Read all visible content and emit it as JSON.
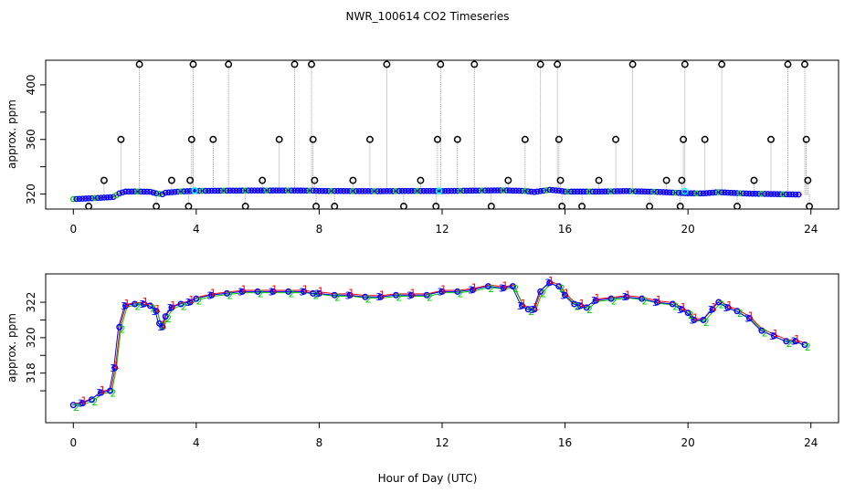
{
  "figure_title": "NWR_100614  CO2 Timeseries",
  "shared_xlabel": "Hour of Day (UTC)",
  "colors": {
    "frame": "#000000",
    "blue": "#0000ff",
    "red": "#ff0000",
    "green": "#00cc00",
    "cyan": "#00ffff",
    "gray": "#888888",
    "flag_circle": "#000000"
  },
  "chart_data": [
    {
      "type": "scatter",
      "title": "",
      "xlabel": "",
      "ylabel": "approx. ppm",
      "xlim": [
        -0.9,
        24.9
      ],
      "ylim": [
        309,
        418
      ],
      "xticks": [
        0,
        4,
        8,
        12,
        16,
        20,
        24
      ],
      "yticks": [
        320,
        360,
        400
      ],
      "yminor": [
        340,
        380
      ],
      "baseline_points": [
        [
          0,
          316.3
        ],
        [
          0.5,
          316.8
        ],
        [
          1.0,
          317.4
        ],
        [
          1.3,
          317.8
        ],
        [
          1.5,
          320.5
        ],
        [
          1.7,
          321.8
        ],
        [
          2.0,
          321.9
        ],
        [
          2.5,
          321.7
        ],
        [
          2.7,
          320.5
        ],
        [
          2.9,
          319.8
        ],
        [
          3.0,
          321.0
        ],
        [
          3.5,
          321.9
        ],
        [
          4.0,
          322.3
        ],
        [
          5.0,
          322.5
        ],
        [
          6.0,
          322.6
        ],
        [
          7.0,
          322.6
        ],
        [
          7.8,
          322.5
        ],
        [
          8.0,
          322.3
        ],
        [
          9.0,
          322.2
        ],
        [
          10.0,
          322.1
        ],
        [
          11.0,
          322.3
        ],
        [
          12.0,
          322.2
        ],
        [
          13.0,
          322.5
        ],
        [
          14.0,
          322.7
        ],
        [
          14.7,
          322.3
        ],
        [
          15.0,
          321.5
        ],
        [
          15.5,
          323.1
        ],
        [
          15.8,
          322.5
        ],
        [
          16.0,
          321.8
        ],
        [
          17.0,
          321.8
        ],
        [
          18.0,
          322.2
        ],
        [
          19.0,
          321.6
        ],
        [
          19.8,
          320.8
        ],
        [
          20.0,
          320.6
        ],
        [
          20.5,
          320.5
        ],
        [
          21.0,
          321.4
        ],
        [
          21.5,
          320.8
        ],
        [
          22.0,
          320.3
        ],
        [
          23.0,
          319.9
        ],
        [
          23.7,
          319.6
        ]
      ],
      "flagged_points": [
        [
          0.5,
          311
        ],
        [
          1.0,
          330
        ],
        [
          1.55,
          360
        ],
        [
          2.15,
          415
        ],
        [
          2.7,
          311
        ],
        [
          3.2,
          330
        ],
        [
          3.75,
          311
        ],
        [
          3.8,
          330
        ],
        [
          3.85,
          360
        ],
        [
          3.9,
          415
        ],
        [
          4.55,
          360
        ],
        [
          5.05,
          415
        ],
        [
          5.6,
          311
        ],
        [
          6.15,
          330
        ],
        [
          6.7,
          360
        ],
        [
          7.2,
          415
        ],
        [
          7.75,
          415
        ],
        [
          7.8,
          360
        ],
        [
          7.85,
          330
        ],
        [
          7.9,
          311
        ],
        [
          8.5,
          311
        ],
        [
          9.1,
          330
        ],
        [
          9.65,
          360
        ],
        [
          10.2,
          415
        ],
        [
          10.75,
          311
        ],
        [
          11.3,
          330
        ],
        [
          11.85,
          360
        ],
        [
          11.95,
          415
        ],
        [
          11.8,
          311
        ],
        [
          12.5,
          360
        ],
        [
          13.05,
          415
        ],
        [
          13.6,
          311
        ],
        [
          14.15,
          330
        ],
        [
          14.7,
          360
        ],
        [
          15.2,
          415
        ],
        [
          15.75,
          415
        ],
        [
          15.8,
          360
        ],
        [
          15.85,
          330
        ],
        [
          15.9,
          311
        ],
        [
          16.55,
          311
        ],
        [
          17.1,
          330
        ],
        [
          17.65,
          360
        ],
        [
          18.2,
          415
        ],
        [
          18.75,
          311
        ],
        [
          19.3,
          330
        ],
        [
          19.75,
          311
        ],
        [
          19.8,
          330
        ],
        [
          19.85,
          360
        ],
        [
          19.9,
          415
        ],
        [
          20.55,
          360
        ],
        [
          21.1,
          415
        ],
        [
          21.6,
          311
        ],
        [
          22.15,
          330
        ],
        [
          22.7,
          360
        ],
        [
          23.25,
          415
        ],
        [
          23.8,
          415
        ],
        [
          23.85,
          360
        ],
        [
          23.9,
          330
        ],
        [
          23.95,
          311
        ]
      ],
      "cyan_points": [
        [
          3.95,
          322.5
        ],
        [
          11.9,
          322.3
        ],
        [
          19.9,
          322.0
        ]
      ]
    },
    {
      "type": "scatter",
      "title": "",
      "xlabel": "Hour of Day (UTC)",
      "ylabel": "approx. ppm",
      "xlim": [
        -0.9,
        24.9
      ],
      "ylim": [
        315.2,
        323.6
      ],
      "xticks": [
        0,
        4,
        8,
        12,
        16,
        20,
        24
      ],
      "yticks": [
        318,
        320,
        322
      ],
      "yminor": [
        317,
        319,
        321
      ],
      "series": [
        {
          "name": "1",
          "color": "#ff0000",
          "dx": 0.05,
          "dy": 0.15
        },
        {
          "name": "2",
          "color": "#00cc00",
          "dx": 0.1,
          "dy": -0.12
        },
        {
          "name": "3",
          "color": "#0000ff",
          "dx": -0.06,
          "dy": 0.0
        }
      ],
      "points": [
        [
          0,
          316.2
        ],
        [
          0.3,
          316.3
        ],
        [
          0.6,
          316.5
        ],
        [
          0.9,
          316.9
        ],
        [
          1.2,
          317.0
        ],
        [
          1.35,
          318.3
        ],
        [
          1.5,
          320.6
        ],
        [
          1.7,
          321.8
        ],
        [
          2.0,
          321.9
        ],
        [
          2.3,
          321.9
        ],
        [
          2.5,
          321.8
        ],
        [
          2.7,
          321.5
        ],
        [
          2.8,
          320.8
        ],
        [
          2.9,
          320.6
        ],
        [
          3.0,
          321.2
        ],
        [
          3.2,
          321.7
        ],
        [
          3.5,
          321.9
        ],
        [
          3.8,
          322.0
        ],
        [
          4.0,
          322.2
        ],
        [
          4.5,
          322.4
        ],
        [
          5.0,
          322.5
        ],
        [
          5.5,
          322.6
        ],
        [
          6.0,
          322.6
        ],
        [
          6.5,
          322.6
        ],
        [
          7.0,
          322.6
        ],
        [
          7.5,
          322.6
        ],
        [
          7.8,
          322.5
        ],
        [
          8.0,
          322.5
        ],
        [
          8.5,
          322.4
        ],
        [
          9.0,
          322.4
        ],
        [
          9.5,
          322.3
        ],
        [
          10.0,
          322.3
        ],
        [
          10.5,
          322.4
        ],
        [
          11.0,
          322.4
        ],
        [
          11.5,
          322.4
        ],
        [
          12.0,
          322.6
        ],
        [
          12.5,
          322.6
        ],
        [
          13.0,
          322.7
        ],
        [
          13.5,
          322.9
        ],
        [
          14.0,
          322.8
        ],
        [
          14.3,
          322.9
        ],
        [
          14.6,
          321.8
        ],
        [
          14.8,
          321.6
        ],
        [
          15.0,
          321.6
        ],
        [
          15.2,
          322.6
        ],
        [
          15.5,
          323.1
        ],
        [
          15.8,
          322.9
        ],
        [
          16.0,
          322.4
        ],
        [
          16.3,
          321.9
        ],
        [
          16.5,
          321.8
        ],
        [
          16.7,
          321.7
        ],
        [
          17.0,
          322.1
        ],
        [
          17.5,
          322.2
        ],
        [
          18.0,
          322.3
        ],
        [
          18.5,
          322.2
        ],
        [
          19.0,
          322.0
        ],
        [
          19.5,
          321.9
        ],
        [
          19.8,
          321.6
        ],
        [
          20.0,
          321.4
        ],
        [
          20.2,
          321.0
        ],
        [
          20.5,
          321.0
        ],
        [
          20.8,
          321.6
        ],
        [
          21.0,
          322.0
        ],
        [
          21.3,
          321.7
        ],
        [
          21.6,
          321.5
        ],
        [
          22.0,
          321.1
        ],
        [
          22.4,
          320.4
        ],
        [
          22.8,
          320.1
        ],
        [
          23.2,
          319.8
        ],
        [
          23.5,
          319.8
        ],
        [
          23.8,
          319.6
        ]
      ]
    }
  ]
}
